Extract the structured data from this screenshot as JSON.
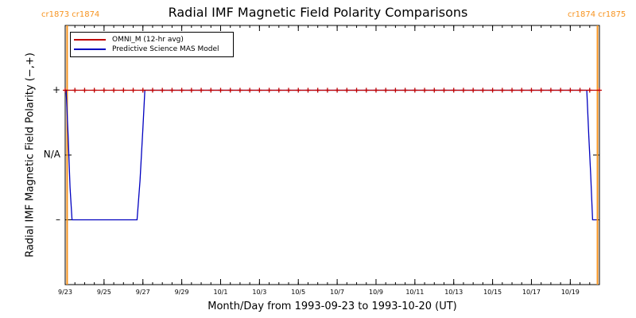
{
  "chart_data": {
    "type": "line",
    "title": "Radial IMF Magnetic Field Polarity Comparisons",
    "xlabel": "Month/Day from 1993-09-23 to 1993-10-20 (UT)",
    "ylabel": "Radial IMF Magnetic Field Polarity (−,+)",
    "x_start": "1993-09-23",
    "x_end": "1993-10-20",
    "xlim": [
      0,
      27.5
    ],
    "ylim": [
      -2,
      2
    ],
    "x_ticks": [
      {
        "x": 0,
        "label": "9/23"
      },
      {
        "x": 2,
        "label": "9/25"
      },
      {
        "x": 4,
        "label": "9/27"
      },
      {
        "x": 6,
        "label": "9/29"
      },
      {
        "x": 8,
        "label": "10/1"
      },
      {
        "x": 10,
        "label": "10/3"
      },
      {
        "x": 12,
        "label": "10/5"
      },
      {
        "x": 14,
        "label": "10/7"
      },
      {
        "x": 16,
        "label": "10/9"
      },
      {
        "x": 18,
        "label": "10/11"
      },
      {
        "x": 20,
        "label": "10/13"
      },
      {
        "x": 22,
        "label": "10/15"
      },
      {
        "x": 24,
        "label": "10/17"
      },
      {
        "x": 26,
        "label": "10/19"
      }
    ],
    "y_ticks": [
      {
        "y": 1,
        "label": "+"
      },
      {
        "y": 0,
        "label": "N/A"
      },
      {
        "y": -1,
        "label": "–"
      }
    ],
    "series": [
      {
        "name": "OMNI_M (12-hr avg)",
        "color": "#c00000",
        "marker": "plus",
        "x": [
          0,
          0.5,
          1,
          1.5,
          2,
          2.5,
          3,
          3.5,
          4,
          4.5,
          5,
          5.5,
          6,
          6.5,
          7,
          7.5,
          8,
          8.5,
          9,
          9.5,
          10,
          10.5,
          11,
          11.5,
          12,
          12.5,
          13,
          13.5,
          14,
          14.5,
          15,
          15.5,
          16,
          16.5,
          17,
          17.5,
          18,
          18.5,
          19,
          19.5,
          20,
          20.5,
          21,
          21.5,
          22,
          22.5,
          23,
          23.5,
          24,
          24.5,
          25,
          25.5,
          26,
          26.5,
          27,
          27.5
        ],
        "y": [
          1,
          1,
          1,
          1,
          1,
          1,
          1,
          1,
          1,
          1,
          1,
          1,
          1,
          1,
          1,
          1,
          1,
          1,
          1,
          1,
          1,
          1,
          1,
          1,
          1,
          1,
          1,
          1,
          1,
          1,
          1,
          1,
          1,
          1,
          1,
          1,
          1,
          1,
          1,
          1,
          1,
          1,
          1,
          1,
          1,
          1,
          1,
          1,
          1,
          1,
          1,
          1,
          1,
          1,
          1,
          1
        ]
      },
      {
        "name": "Predictive Science MAS Model",
        "color": "#0000c0",
        "x": [
          0,
          0.05,
          0.15,
          0.25,
          0.35,
          3.7,
          3.85,
          4.0,
          4.1,
          26.85,
          26.95,
          27.05,
          27.15,
          27.35
        ],
        "y": [
          1,
          1,
          0.3,
          -0.5,
          -1,
          -1,
          -0.4,
          0.4,
          1,
          1,
          0.3,
          -0.3,
          -1,
          -1
        ]
      }
    ],
    "carrington_markers": [
      {
        "x": 0.1,
        "label": "cr1873 cr1874",
        "color": "#f7931e"
      },
      {
        "x": 27.4,
        "label": "cr1874 cr1875",
        "color": "#f7931e"
      }
    ],
    "legend": {
      "placement": "top-left"
    },
    "grid": false
  }
}
